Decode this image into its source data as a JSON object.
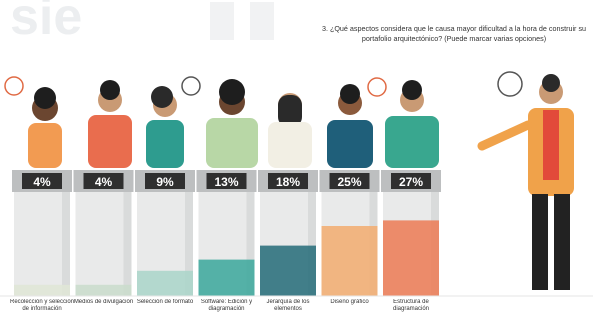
{
  "chart_data": {
    "type": "bar",
    "title": "3. ¿Qué aspectos considera que le causa mayor dificultad a la hora de construir su portafolio arquitectónico? (Puede marcar varias opciones)",
    "categories": [
      "Recolección y selección de información",
      "Medios de divulgación",
      "Selección de formato",
      "Software: Edición y diagramación",
      "Jerarquía de los elementos",
      "Diseño gráfico",
      "Estructura de diagramación"
    ],
    "values": [
      4,
      4,
      9,
      13,
      18,
      25,
      27
    ],
    "value_labels": [
      "4%",
      "4%",
      "9%",
      "13%",
      "18%",
      "25%",
      "27%"
    ],
    "colors": [
      "#dfe6d6",
      "#c9dccb",
      "#a9d5c9",
      "#3aa79b",
      "#236b78",
      "#f2ab6f",
      "#ec7a54"
    ]
  }
}
